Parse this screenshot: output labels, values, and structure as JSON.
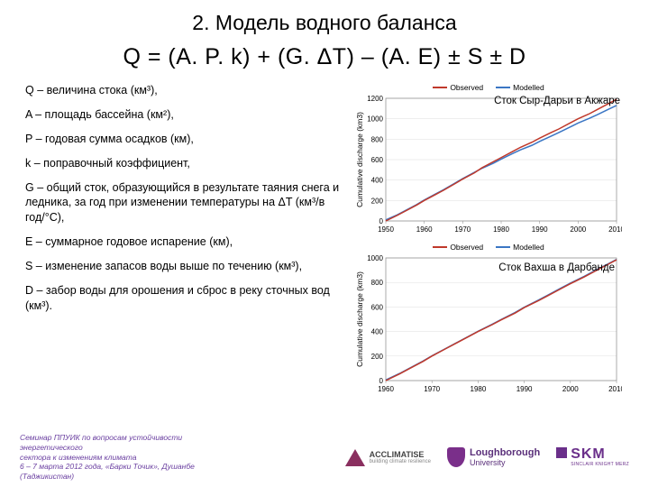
{
  "title": "2. Модель водного баланса",
  "equation": "Q = (A. P. k) + (G. ΔT) – (A. E) ± S ± D",
  "defs": {
    "Q": "Q –  величина стока (км³),",
    "A": "A – площадь бассейна (км²),",
    "P": "P – годовая сумма осадков (км),",
    "k": "k – поправочный коэффициент,",
    "G": "G –  общий сток, образующийся в результате таяния снега и ледника, за год при изменении температуры на ΔT (км³/в год/°C),",
    "E": "E – суммарное годовое испарение (км),",
    "S": "S – изменение запасов воды выше по течению (км³),",
    "D": "D – забор воды для орошения и сброс в реку сточных вод (км³)."
  },
  "chart1": {
    "title_overlay": "Сток Сыр-Дарьи в Акжаре",
    "legend": {
      "observed": "Observed",
      "modelled": "Modelled"
    },
    "yaxis_label": "Cumulative discharge (km3)",
    "xlim": [
      1950,
      2010
    ],
    "xtick_step": 10,
    "ylim": [
      0,
      1200
    ],
    "ytick_step": 200,
    "series_observed_color": "#c0392b",
    "series_modelled_color": "#3b76c4",
    "grid_color": "#dddddd",
    "observed": [
      [
        1950,
        0
      ],
      [
        1953,
        55
      ],
      [
        1955,
        95
      ],
      [
        1958,
        155
      ],
      [
        1960,
        200
      ],
      [
        1963,
        260
      ],
      [
        1965,
        300
      ],
      [
        1968,
        365
      ],
      [
        1970,
        410
      ],
      [
        1973,
        470
      ],
      [
        1975,
        520
      ],
      [
        1978,
        580
      ],
      [
        1980,
        620
      ],
      [
        1983,
        680
      ],
      [
        1985,
        720
      ],
      [
        1988,
        770
      ],
      [
        1990,
        810
      ],
      [
        1993,
        865
      ],
      [
        1995,
        900
      ],
      [
        1998,
        960
      ],
      [
        2000,
        1000
      ],
      [
        2003,
        1050
      ],
      [
        2005,
        1090
      ],
      [
        2008,
        1150
      ],
      [
        2010,
        1190
      ]
    ],
    "modelled": [
      [
        1950,
        10
      ],
      [
        1953,
        60
      ],
      [
        1955,
        100
      ],
      [
        1958,
        160
      ],
      [
        1960,
        205
      ],
      [
        1963,
        265
      ],
      [
        1965,
        305
      ],
      [
        1968,
        370
      ],
      [
        1970,
        415
      ],
      [
        1973,
        475
      ],
      [
        1975,
        515
      ],
      [
        1978,
        565
      ],
      [
        1980,
        605
      ],
      [
        1983,
        660
      ],
      [
        1985,
        695
      ],
      [
        1988,
        740
      ],
      [
        1990,
        778
      ],
      [
        1993,
        830
      ],
      [
        1995,
        865
      ],
      [
        1998,
        920
      ],
      [
        2000,
        958
      ],
      [
        2003,
        1005
      ],
      [
        2005,
        1040
      ],
      [
        2008,
        1095
      ],
      [
        2010,
        1130
      ]
    ]
  },
  "chart2": {
    "title_overlay": "Сток Вахша в Дарбанде",
    "legend": {
      "observed": "Observed",
      "modelled": "Modelled"
    },
    "yaxis_label": "Cumulative discharge (km3)",
    "xlim": [
      1960,
      2010
    ],
    "xtick_step": 10,
    "ylim": [
      0,
      1000
    ],
    "ytick_step": 200,
    "series_observed_color": "#c0392b",
    "series_modelled_color": "#3b76c4",
    "grid_color": "#dddddd",
    "observed": [
      [
        1960,
        0
      ],
      [
        1963,
        55
      ],
      [
        1965,
        95
      ],
      [
        1968,
        155
      ],
      [
        1970,
        200
      ],
      [
        1973,
        260
      ],
      [
        1975,
        300
      ],
      [
        1978,
        360
      ],
      [
        1980,
        400
      ],
      [
        1983,
        455
      ],
      [
        1985,
        495
      ],
      [
        1988,
        550
      ],
      [
        1990,
        595
      ],
      [
        1993,
        650
      ],
      [
        1995,
        690
      ],
      [
        1998,
        750
      ],
      [
        2000,
        790
      ],
      [
        2003,
        845
      ],
      [
        2005,
        885
      ],
      [
        2008,
        945
      ],
      [
        2010,
        985
      ]
    ],
    "modelled": [
      [
        1960,
        5
      ],
      [
        1963,
        58
      ],
      [
        1965,
        98
      ],
      [
        1968,
        158
      ],
      [
        1970,
        202
      ],
      [
        1973,
        262
      ],
      [
        1975,
        302
      ],
      [
        1978,
        362
      ],
      [
        1980,
        402
      ],
      [
        1983,
        458
      ],
      [
        1985,
        498
      ],
      [
        1988,
        555
      ],
      [
        1990,
        598
      ],
      [
        1993,
        655
      ],
      [
        1995,
        695
      ],
      [
        1998,
        755
      ],
      [
        2000,
        795
      ],
      [
        2003,
        850
      ],
      [
        2005,
        890
      ],
      [
        2008,
        948
      ],
      [
        2010,
        988
      ]
    ]
  },
  "footer": {
    "text_l1": "Семинар ППУИК по вопросам устойчивости энергетического",
    "text_l2": "сектора к изменениям климата",
    "text_l3": "6 – 7 марта 2012 года, «Барки Точик», Душанбе (Таджикистан)",
    "acc_name": "ACCLIMATISE",
    "acc_tag": "building climate resilience",
    "lb_name": "Loughborough",
    "lb_sub": "University",
    "skm_name": "SKM",
    "skm_tag": "SINCLAIR KNIGHT MERZ"
  }
}
